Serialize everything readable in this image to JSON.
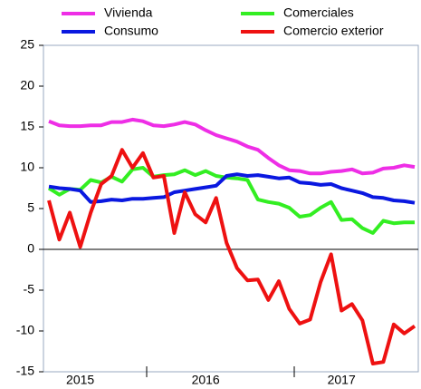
{
  "chart_data": {
    "type": "line",
    "categories": [
      null,
      null,
      null,
      "2015",
      null,
      null,
      null,
      null,
      null,
      null,
      null,
      null,
      null,
      null,
      null,
      "2016",
      null,
      null,
      null,
      null,
      null,
      null,
      null,
      null,
      null,
      null,
      null,
      null,
      "2017",
      null,
      null,
      null,
      null,
      null,
      null,
      null
    ],
    "series": [
      {
        "name": "Vivienda",
        "color": "#ee2ee6",
        "values": [
          15.7,
          15.2,
          15.1,
          15.1,
          15.2,
          15.2,
          15.6,
          15.6,
          15.9,
          15.7,
          15.2,
          15.1,
          15.3,
          15.6,
          15.3,
          14.6,
          14.0,
          13.6,
          13.2,
          12.6,
          12.2,
          11.2,
          10.3,
          9.7,
          9.6,
          9.3,
          9.3,
          9.5,
          9.6,
          9.8,
          9.3,
          9.4,
          9.9,
          10.0,
          10.3,
          10.1
        ]
      },
      {
        "name": "Comerciales",
        "color": "#33ee22",
        "values": [
          7.5,
          6.7,
          7.4,
          7.3,
          8.5,
          8.2,
          8.9,
          8.3,
          9.8,
          10.0,
          8.9,
          9.1,
          9.2,
          9.7,
          9.1,
          9.6,
          9.0,
          8.8,
          8.7,
          8.5,
          6.1,
          5.8,
          5.6,
          5.1,
          4.0,
          4.2,
          5.1,
          5.8,
          3.6,
          3.7,
          2.6,
          2.0,
          3.5,
          3.2,
          3.3,
          3.3
        ]
      },
      {
        "name": "Consumo",
        "color": "#0a18e0",
        "values": [
          7.7,
          7.5,
          7.4,
          7.2,
          5.8,
          5.9,
          6.1,
          6.0,
          6.2,
          6.2,
          6.3,
          6.4,
          7.0,
          7.2,
          7.4,
          7.6,
          7.8,
          9.0,
          9.2,
          9.0,
          9.1,
          8.9,
          8.7,
          8.8,
          8.2,
          8.1,
          7.9,
          8.0,
          7.5,
          7.2,
          6.9,
          6.4,
          6.3,
          6.0,
          5.9,
          5.7
        ]
      },
      {
        "name": "Comercio exterior",
        "color": "#ee1111",
        "values": [
          6,
          1.2,
          4.5,
          0.3,
          4.5,
          8,
          9,
          12.2,
          10,
          11.8,
          8.8,
          9,
          2,
          7,
          4.3,
          3.3,
          6.3,
          0.8,
          -2.3,
          -3.8,
          -3.7,
          -6.2,
          -3.9,
          -7.3,
          -9.1,
          -8.6,
          -4,
          -0.6,
          -7.5,
          -6.7,
          -8.7,
          -14,
          -13.8,
          -9.2,
          -10.3,
          -9.4
        ]
      }
    ],
    "ylim": [
      -15,
      25
    ],
    "yticks": [
      -15,
      -10,
      -5,
      0,
      5,
      10,
      15,
      20,
      25
    ]
  }
}
